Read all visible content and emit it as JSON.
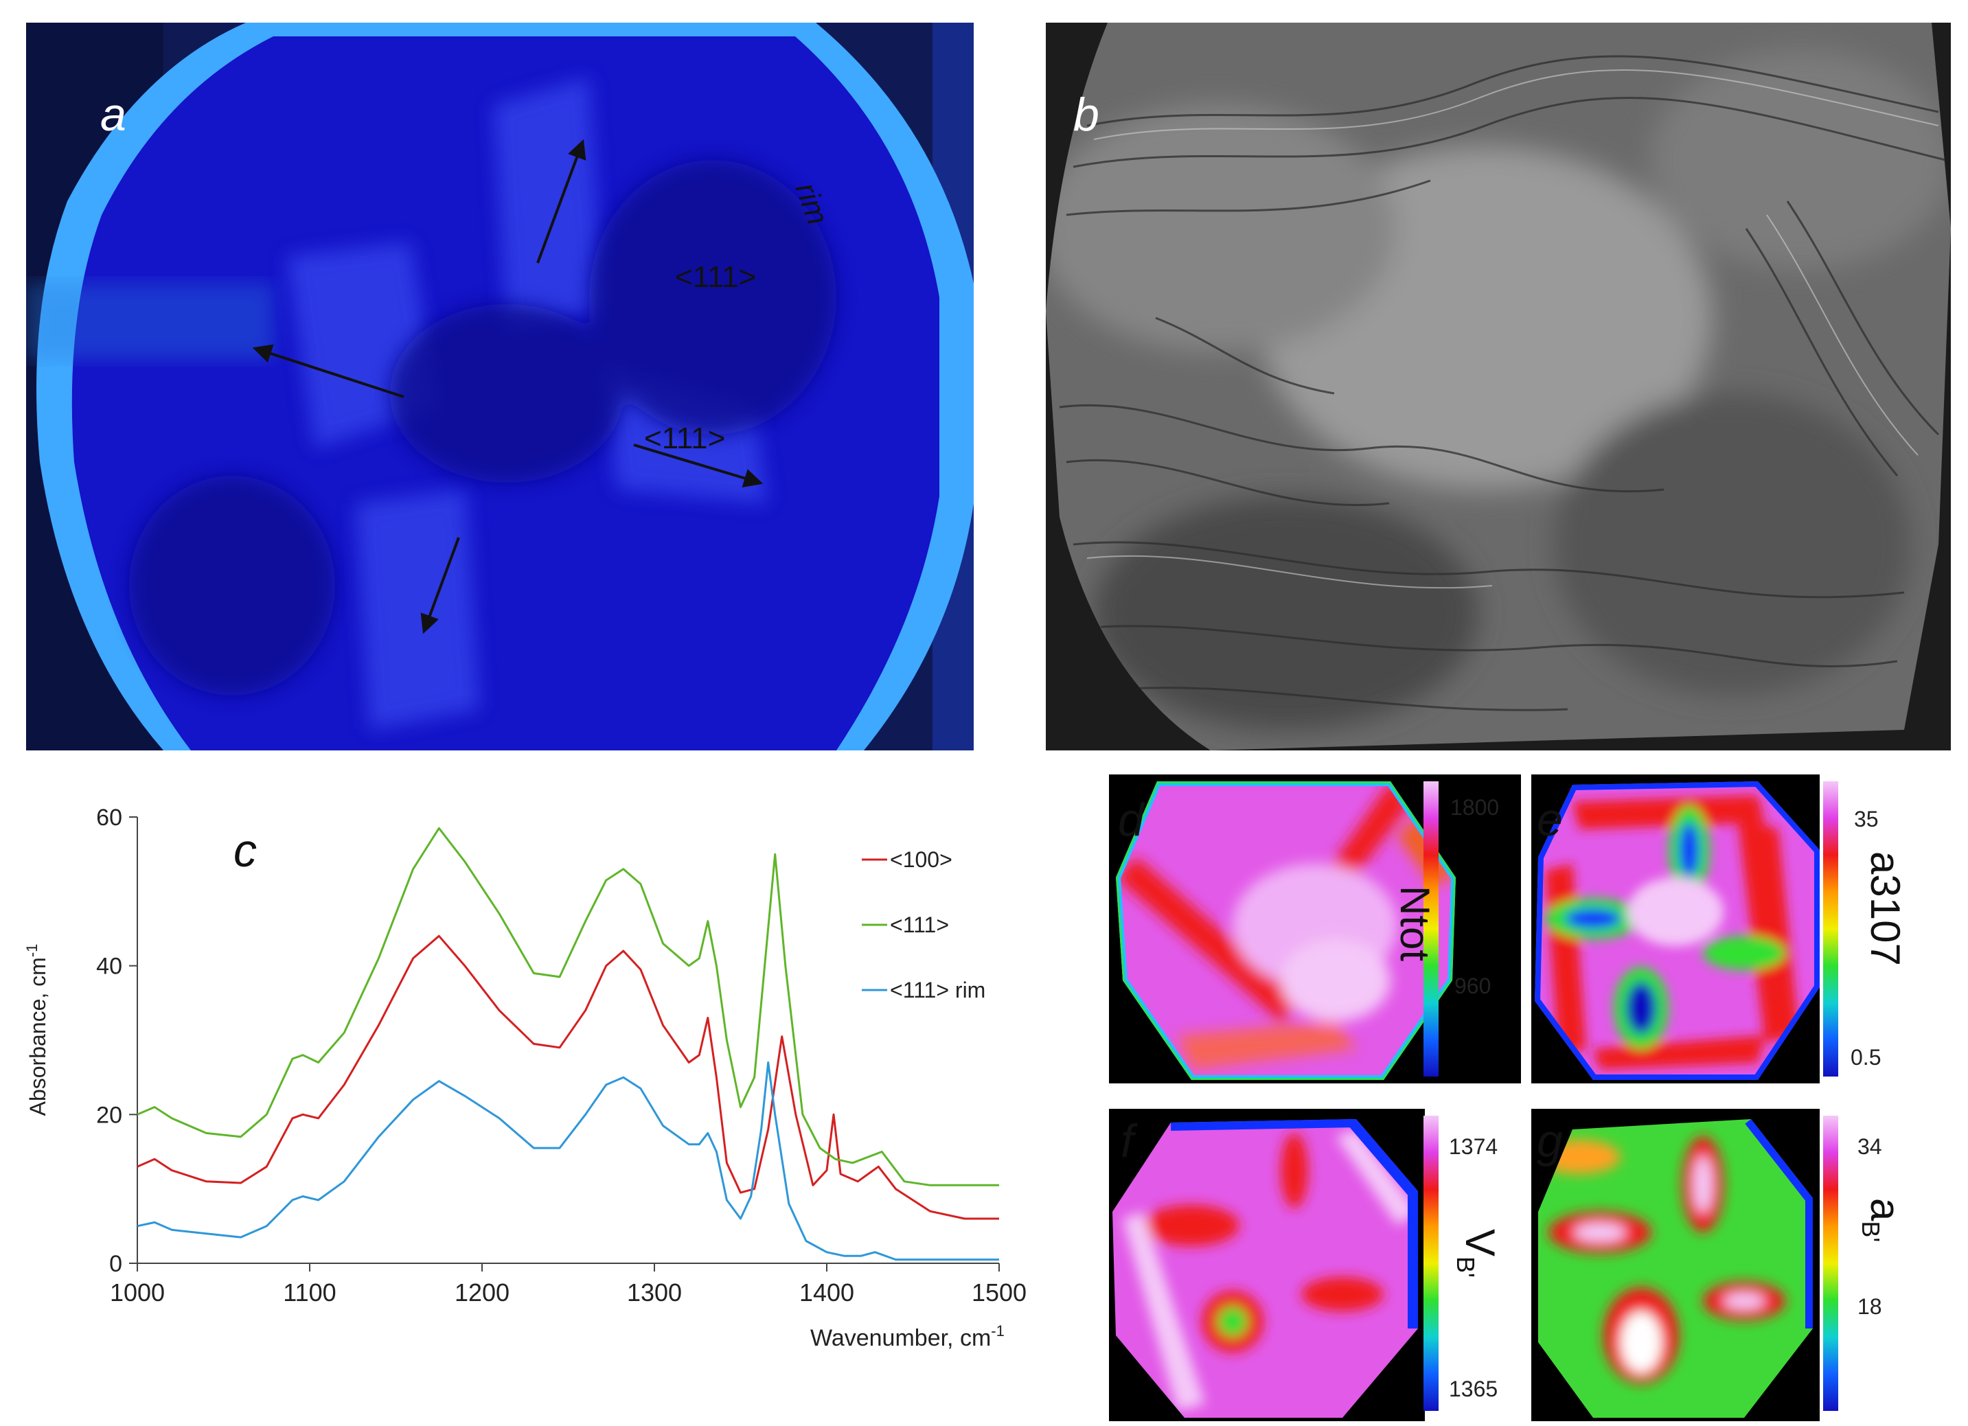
{
  "panels": {
    "a": {
      "label": "a",
      "annotations": {
        "rim": "rim",
        "dir1": "<111>",
        "dir2": "<111>"
      }
    },
    "b": {
      "label": "b"
    },
    "c": {
      "label": "c"
    },
    "d": {
      "label": "d",
      "colorbar": {
        "max": "1800",
        "mid": "960",
        "title": "Ntot"
      }
    },
    "e": {
      "label": "e",
      "colorbar": {
        "max": "35",
        "min": "0.5",
        "title": "a3107"
      }
    },
    "f": {
      "label": "f",
      "colorbar": {
        "max": "1374",
        "min": "1365",
        "title": "V",
        "title_sub": "B'"
      }
    },
    "g": {
      "label": "g",
      "colorbar": {
        "max": "34",
        "min": "18",
        "title": "a",
        "title_sub": "B'"
      }
    }
  },
  "colors": {
    "series_100": "#d42020",
    "series_111": "#5fb52a",
    "series_111_rim": "#2f97d8",
    "cl_blue_dark": "#1010c0",
    "cl_blue_light": "#3fa8ff"
  },
  "chart_data": {
    "type": "line",
    "xlabel": "Wavenumber, cm",
    "xlabel_sup": "-1",
    "ylabel": "Absorbance, cm",
    "ylabel_sup": "-1",
    "xlim": [
      1000,
      1500
    ],
    "ylim": [
      0,
      60
    ],
    "xticks": [
      1000,
      1100,
      1200,
      1300,
      1400,
      1500
    ],
    "yticks": [
      0,
      20,
      40,
      60
    ],
    "legend_position": "top-right",
    "series": [
      {
        "name": "<100>",
        "color": "#d42020",
        "x": [
          1000,
          1010,
          1020,
          1040,
          1060,
          1075,
          1090,
          1096,
          1105,
          1120,
          1140,
          1160,
          1175,
          1190,
          1210,
          1230,
          1245,
          1260,
          1272,
          1282,
          1292,
          1305,
          1320,
          1326,
          1331,
          1336,
          1342,
          1350,
          1358,
          1366,
          1374,
          1382,
          1392,
          1400,
          1404,
          1408,
          1418,
          1430,
          1440,
          1460,
          1480,
          1500
        ],
        "y": [
          13,
          14,
          12.5,
          11,
          10.8,
          13,
          19.5,
          20,
          19.5,
          24,
          32,
          41,
          44,
          40,
          34,
          29.5,
          29,
          34,
          40,
          42,
          39.5,
          32,
          27,
          28,
          33,
          25,
          13.5,
          9.5,
          10,
          18,
          30.5,
          20,
          10.5,
          12.5,
          20,
          12,
          11,
          13,
          10,
          7,
          6,
          6
        ]
      },
      {
        "name": "<111>",
        "color": "#5fb52a",
        "x": [
          1000,
          1010,
          1020,
          1040,
          1060,
          1075,
          1090,
          1096,
          1105,
          1120,
          1140,
          1160,
          1175,
          1190,
          1210,
          1230,
          1245,
          1260,
          1272,
          1282,
          1292,
          1305,
          1320,
          1326,
          1331,
          1336,
          1342,
          1350,
          1358,
          1364,
          1370,
          1376,
          1386,
          1396,
          1405,
          1415,
          1432,
          1445,
          1460,
          1480,
          1500
        ],
        "y": [
          20,
          21,
          19.5,
          17.5,
          17,
          20,
          27.5,
          28,
          27,
          31,
          41,
          53,
          58.5,
          54,
          47,
          39,
          38.5,
          46,
          51.5,
          53,
          51,
          43,
          40,
          41,
          46,
          40,
          30,
          21,
          25,
          40,
          55,
          40,
          20,
          15.5,
          14,
          13.5,
          15,
          11,
          10.5,
          10.5,
          10.5
        ]
      },
      {
        "name": "<111> rim",
        "color": "#2f97d8",
        "x": [
          1000,
          1010,
          1020,
          1040,
          1060,
          1075,
          1090,
          1096,
          1105,
          1120,
          1140,
          1160,
          1175,
          1190,
          1210,
          1230,
          1245,
          1260,
          1272,
          1282,
          1292,
          1305,
          1320,
          1326,
          1331,
          1336,
          1342,
          1350,
          1356,
          1362,
          1366,
          1370,
          1378,
          1388,
          1400,
          1410,
          1420,
          1428,
          1440,
          1460,
          1480,
          1500
        ],
        "y": [
          5,
          5.5,
          4.5,
          4,
          3.5,
          5,
          8.5,
          9,
          8.5,
          11,
          17,
          22,
          24.5,
          22.5,
          19.5,
          15.5,
          15.5,
          20,
          24,
          25,
          23.5,
          18.5,
          16,
          16,
          17.5,
          15,
          8.5,
          6,
          9,
          18,
          27,
          20,
          8,
          3,
          1.5,
          1,
          1,
          1.5,
          0.5,
          0.5,
          0.5,
          0.5
        ]
      }
    ]
  }
}
